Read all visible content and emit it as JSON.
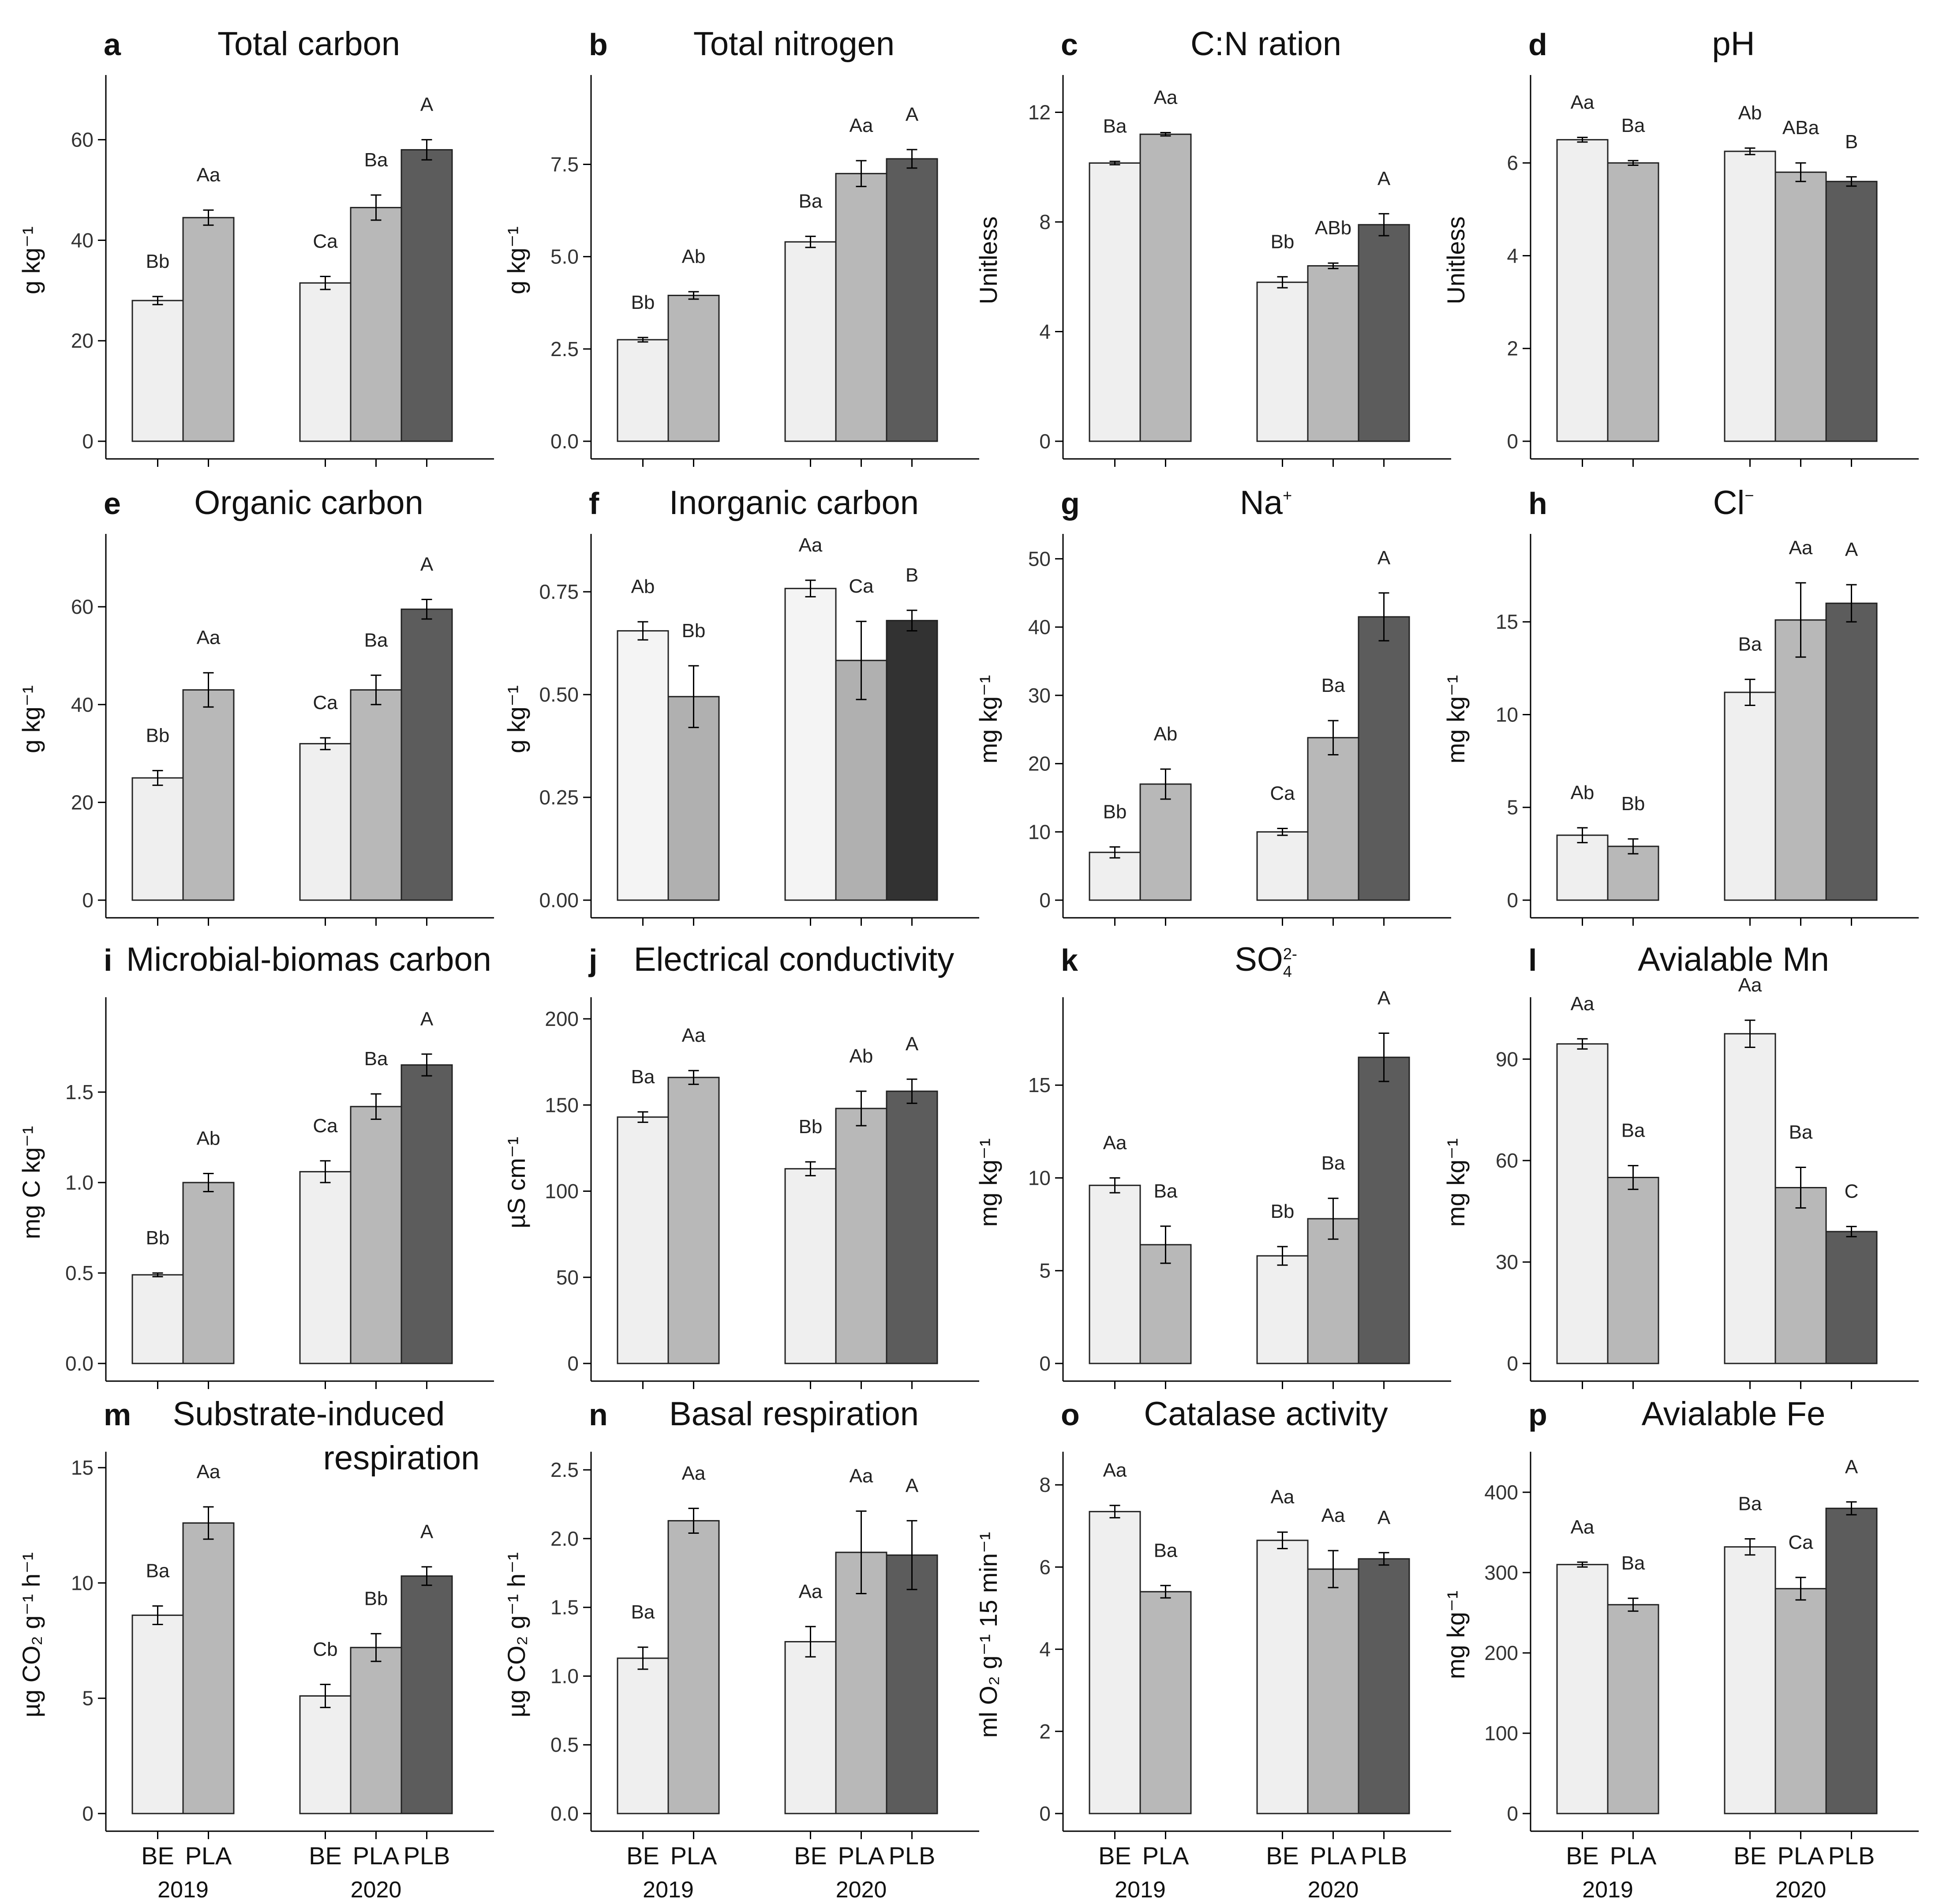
{
  "colors": {
    "BE": "#efefef",
    "PLA": "#b8b8b8",
    "PLB": "#5c5c5c"
  },
  "x_axis": {
    "categories_2019": [
      "BE",
      "PLA"
    ],
    "categories_2020": [
      "BE",
      "PLA",
      "PLB"
    ],
    "years": [
      "2019",
      "2020"
    ]
  },
  "chart_data": [
    {
      "type": "bar",
      "label": "a",
      "title": "Total carbon",
      "ylabel": "g kg⁻¹",
      "ylim": [
        0,
        72
      ],
      "yticks": [
        "0",
        "20",
        "40",
        "60"
      ],
      "ytick_values": [
        0,
        20,
        40,
        60
      ],
      "series": [
        {
          "name": "BE 2019",
          "value": 28,
          "error": 0.8,
          "letter": "Bb"
        },
        {
          "name": "PLA 2019",
          "value": 44.5,
          "error": 1.5,
          "letter": "Aa"
        },
        {
          "name": "BE 2020",
          "value": 31.5,
          "error": 1.3,
          "letter": "Ca"
        },
        {
          "name": "PLA 2020",
          "value": 46.5,
          "error": 2.5,
          "letter": "Ba"
        },
        {
          "name": "PLB 2020",
          "value": 58,
          "error": 2,
          "letter": "A"
        }
      ]
    },
    {
      "type": "bar",
      "label": "b",
      "title": "Total nitrogen",
      "ylabel": "g kg⁻¹",
      "ylim": [
        0,
        9.8
      ],
      "yticks": [
        "0.0",
        "2.5",
        "5.0",
        "7.5"
      ],
      "ytick_values": [
        0,
        2.5,
        5,
        7.5
      ],
      "series": [
        {
          "name": "BE 2019",
          "value": 2.75,
          "error": 0.06,
          "letter": "Bb"
        },
        {
          "name": "PLA 2019",
          "value": 3.95,
          "error": 0.1,
          "letter": "Ab"
        },
        {
          "name": "BE 2020",
          "value": 5.4,
          "error": 0.15,
          "letter": "Ba"
        },
        {
          "name": "PLA 2020",
          "value": 7.25,
          "error": 0.35,
          "letter": "Aa"
        },
        {
          "name": "PLB 2020",
          "value": 7.65,
          "error": 0.25,
          "letter": "A"
        }
      ]
    },
    {
      "type": "bar",
      "label": "c",
      "title": "C:N ration",
      "ylabel": "Unitless",
      "ylim": [
        0,
        13.2
      ],
      "yticks": [
        "0",
        "4",
        "8",
        "12"
      ],
      "ytick_values": [
        0,
        4,
        8,
        12
      ],
      "series": [
        {
          "name": "BE 2019",
          "value": 10.15,
          "error": 0.06,
          "letter": "Ba"
        },
        {
          "name": "PLA 2019",
          "value": 11.2,
          "error": 0.06,
          "letter": "Aa"
        },
        {
          "name": "BE 2020",
          "value": 5.8,
          "error": 0.2,
          "letter": "Bb"
        },
        {
          "name": "PLA 2020",
          "value": 6.4,
          "error": 0.1,
          "letter": "ABb"
        },
        {
          "name": "PLB 2020",
          "value": 7.9,
          "error": 0.4,
          "letter": "A"
        }
      ]
    },
    {
      "type": "bar",
      "label": "d",
      "title": "pH",
      "ylabel": "Unitless",
      "ylim": [
        0,
        7.8
      ],
      "yticks": [
        "0",
        "2",
        "4",
        "6"
      ],
      "ytick_values": [
        0,
        2,
        4,
        6
      ],
      "series": [
        {
          "name": "BE 2019",
          "value": 6.5,
          "error": 0.05,
          "letter": "Aa"
        },
        {
          "name": "PLA 2019",
          "value": 6.0,
          "error": 0.05,
          "letter": "Ba"
        },
        {
          "name": "BE 2020",
          "value": 6.25,
          "error": 0.07,
          "letter": "Ab"
        },
        {
          "name": "PLA 2020",
          "value": 5.8,
          "error": 0.2,
          "letter": "ABa"
        },
        {
          "name": "PLB 2020",
          "value": 5.6,
          "error": 0.1,
          "letter": "B"
        }
      ]
    },
    {
      "type": "bar",
      "label": "e",
      "title": "Organic carbon",
      "ylabel": "g kg⁻¹",
      "ylim": [
        0,
        74
      ],
      "yticks": [
        "0",
        "20",
        "40",
        "60"
      ],
      "ytick_values": [
        0,
        20,
        40,
        60
      ],
      "series": [
        {
          "name": "BE 2019",
          "value": 25,
          "error": 1.5,
          "letter": "Bb"
        },
        {
          "name": "PLA 2019",
          "value": 43,
          "error": 3.5,
          "letter": "Aa"
        },
        {
          "name": "BE 2020",
          "value": 32,
          "error": 1.2,
          "letter": "Ca"
        },
        {
          "name": "PLA 2020",
          "value": 43,
          "error": 3,
          "letter": "Ba"
        },
        {
          "name": "PLB 2020",
          "value": 59.5,
          "error": 2,
          "letter": "A"
        }
      ]
    },
    {
      "type": "bar",
      "label": "f",
      "title": "Inorganic carbon",
      "ylabel": "g kg⁻¹",
      "ylim": [
        0,
        0.88
      ],
      "yticks": [
        "0.00",
        "0.25",
        "0.50",
        "0.75"
      ],
      "ytick_values": [
        0,
        0.25,
        0.5,
        0.75
      ],
      "colors": [
        "#f4f4f4",
        "#b0b0b0",
        "#f4f4f4",
        "#b0b0b0",
        "#323232"
      ],
      "series": [
        {
          "name": "BE 2019",
          "value": 0.655,
          "error": 0.022,
          "letter": "Ab"
        },
        {
          "name": "PLA 2019",
          "value": 0.495,
          "error": 0.075,
          "letter": "Bb"
        },
        {
          "name": "BE 2020",
          "value": 0.758,
          "error": 0.02,
          "letter": "Aa"
        },
        {
          "name": "PLA 2020",
          "value": 0.583,
          "error": 0.095,
          "letter": "Ca"
        },
        {
          "name": "PLB 2020",
          "value": 0.68,
          "error": 0.025,
          "letter": "B"
        }
      ]
    },
    {
      "type": "bar",
      "label": "g",
      "title": "Na",
      "title_sup": "+",
      "ylabel": "mg kg⁻¹",
      "ylim": [
        0,
        53
      ],
      "yticks": [
        "0",
        "10",
        "20",
        "30",
        "40",
        "50"
      ],
      "ytick_values": [
        0,
        10,
        20,
        30,
        40,
        50
      ],
      "series": [
        {
          "name": "BE 2019",
          "value": 7,
          "error": 0.8,
          "letter": "Bb"
        },
        {
          "name": "PLA 2019",
          "value": 17,
          "error": 2.2,
          "letter": "Ab"
        },
        {
          "name": "BE 2020",
          "value": 10,
          "error": 0.5,
          "letter": "Ca"
        },
        {
          "name": "PLA 2020",
          "value": 23.8,
          "error": 2.5,
          "letter": "Ba"
        },
        {
          "name": "PLB 2020",
          "value": 41.5,
          "error": 3.5,
          "letter": "A"
        }
      ]
    },
    {
      "type": "bar",
      "label": "h",
      "title": "Cl",
      "title_sup": "−",
      "ylabel": "mg kg⁻¹",
      "ylim": [
        0,
        19.5
      ],
      "yticks": [
        "0",
        "5",
        "10",
        "15"
      ],
      "ytick_values": [
        0,
        5,
        10,
        15
      ],
      "series": [
        {
          "name": "BE 2019",
          "value": 3.5,
          "error": 0.4,
          "letter": "Ab"
        },
        {
          "name": "PLA 2019",
          "value": 2.9,
          "error": 0.4,
          "letter": "Bb"
        },
        {
          "name": "BE 2020",
          "value": 11.2,
          "error": 0.7,
          "letter": "Ba"
        },
        {
          "name": "PLA 2020",
          "value": 15.1,
          "error": 2,
          "letter": "Aa"
        },
        {
          "name": "PLB 2020",
          "value": 16,
          "error": 1,
          "letter": "A"
        }
      ]
    },
    {
      "type": "bar",
      "label": "i",
      "title": "Microbial-biomas carbon",
      "ylabel": "mg C kg⁻¹",
      "ylim": [
        0,
        2.0
      ],
      "yticks": [
        "0.0",
        "0.5",
        "1.0",
        "1.5"
      ],
      "ytick_values": [
        0,
        0.5,
        1,
        1.5
      ],
      "series": [
        {
          "name": "BE 2019",
          "value": 0.49,
          "error": 0.01,
          "letter": "Bb"
        },
        {
          "name": "PLA 2019",
          "value": 1.0,
          "error": 0.05,
          "letter": "Ab"
        },
        {
          "name": "BE 2020",
          "value": 1.06,
          "error": 0.06,
          "letter": "Ca"
        },
        {
          "name": "PLA 2020",
          "value": 1.42,
          "error": 0.07,
          "letter": "Ba"
        },
        {
          "name": "PLB 2020",
          "value": 1.65,
          "error": 0.06,
          "letter": "A"
        }
      ]
    },
    {
      "type": "bar",
      "label": "j",
      "title": "Electrical conductivity",
      "ylabel": "µS cm⁻¹",
      "ylim": [
        0,
        210
      ],
      "yticks": [
        "0",
        "50",
        "100",
        "150",
        "200"
      ],
      "ytick_values": [
        0,
        50,
        100,
        150,
        200
      ],
      "series": [
        {
          "name": "BE 2019",
          "value": 143,
          "error": 3,
          "letter": "Ba"
        },
        {
          "name": "PLA 2019",
          "value": 166,
          "error": 4,
          "letter": "Aa"
        },
        {
          "name": "BE 2020",
          "value": 113,
          "error": 4,
          "letter": "Bb"
        },
        {
          "name": "PLA 2020",
          "value": 148,
          "error": 10,
          "letter": "Ab"
        },
        {
          "name": "PLB 2020",
          "value": 158,
          "error": 7,
          "letter": "A"
        }
      ]
    },
    {
      "type": "bar",
      "label": "k",
      "title": "SO",
      "title_sub": "4",
      "title_sup": "2-",
      "ylabel": "mg kg⁻¹",
      "ylim": [
        0,
        19.5
      ],
      "yticks": [
        "0",
        "5",
        "10",
        "15"
      ],
      "ytick_values": [
        0,
        5,
        10,
        15
      ],
      "series": [
        {
          "name": "BE 2019",
          "value": 9.6,
          "error": 0.4,
          "letter": "Aa"
        },
        {
          "name": "PLA 2019",
          "value": 6.4,
          "error": 1,
          "letter": "Ba"
        },
        {
          "name": "BE 2020",
          "value": 5.8,
          "error": 0.5,
          "letter": "Bb"
        },
        {
          "name": "PLA 2020",
          "value": 7.8,
          "error": 1.1,
          "letter": "Ba"
        },
        {
          "name": "PLB 2020",
          "value": 16.5,
          "error": 1.3,
          "letter": "A"
        }
      ]
    },
    {
      "type": "bar",
      "label": "l",
      "title": "Avialable Mn",
      "ylabel": "mg kg⁻¹",
      "ylim": [
        0,
        107
      ],
      "yticks": [
        "0",
        "30",
        "60",
        "90"
      ],
      "ytick_values": [
        0,
        30,
        60,
        90
      ],
      "series": [
        {
          "name": "BE 2019",
          "value": 94.5,
          "error": 1.5,
          "letter": "Aa"
        },
        {
          "name": "PLA 2019",
          "value": 55,
          "error": 3.5,
          "letter": "Ba"
        },
        {
          "name": "BE 2020",
          "value": 97.5,
          "error": 4,
          "letter": "Aa"
        },
        {
          "name": "PLA 2020",
          "value": 52,
          "error": 6,
          "letter": "Ba"
        },
        {
          "name": "PLB 2020",
          "value": 39,
          "error": 1.5,
          "letter": "C"
        }
      ]
    },
    {
      "type": "bar",
      "label": "m",
      "title": "Substrate-induced",
      "title2": "respiration",
      "ylabel": "µg CO₂ g⁻¹ h⁻¹",
      "ylim": [
        0,
        15.5
      ],
      "yticks": [
        "0",
        "5",
        "10",
        "15"
      ],
      "ytick_values": [
        0,
        5,
        10,
        15
      ],
      "series": [
        {
          "name": "BE 2019",
          "value": 8.6,
          "error": 0.4,
          "letter": "Ba"
        },
        {
          "name": "PLA 2019",
          "value": 12.6,
          "error": 0.7,
          "letter": "Aa"
        },
        {
          "name": "BE 2020",
          "value": 5.1,
          "error": 0.5,
          "letter": "Cb"
        },
        {
          "name": "PLA 2020",
          "value": 7.2,
          "error": 0.6,
          "letter": "Bb"
        },
        {
          "name": "PLB 2020",
          "value": 10.3,
          "error": 0.4,
          "letter": "A"
        }
      ]
    },
    {
      "type": "bar",
      "label": "n",
      "title": "Basal respiration",
      "ylabel": "µg CO₂ g⁻¹ h⁻¹",
      "ylim": [
        0,
        2.6
      ],
      "yticks": [
        "0.0",
        "0.5",
        "1.0",
        "1.5",
        "2.0",
        "2.5"
      ],
      "ytick_values": [
        0,
        0.5,
        1,
        1.5,
        2,
        2.5
      ],
      "series": [
        {
          "name": "BE 2019",
          "value": 1.13,
          "error": 0.08,
          "letter": "Ba"
        },
        {
          "name": "PLA 2019",
          "value": 2.13,
          "error": 0.09,
          "letter": "Aa"
        },
        {
          "name": "BE 2020",
          "value": 1.25,
          "error": 0.11,
          "letter": "Aa"
        },
        {
          "name": "PLA 2020",
          "value": 1.9,
          "error": 0.3,
          "letter": "Aa"
        },
        {
          "name": "PLB 2020",
          "value": 1.88,
          "error": 0.25,
          "letter": "A"
        }
      ]
    },
    {
      "type": "bar",
      "label": "o",
      "title": "Catalase activity",
      "ylabel": "ml O₂ g⁻¹ 15 min⁻¹",
      "ylim": [
        0,
        8.7
      ],
      "yticks": [
        "0",
        "2",
        "4",
        "6",
        "8"
      ],
      "ytick_values": [
        0,
        2,
        4,
        6,
        8
      ],
      "series": [
        {
          "name": "BE 2019",
          "value": 7.35,
          "error": 0.15,
          "letter": "Aa"
        },
        {
          "name": "PLA 2019",
          "value": 5.4,
          "error": 0.15,
          "letter": "Ba"
        },
        {
          "name": "BE 2020",
          "value": 6.65,
          "error": 0.2,
          "letter": "Aa"
        },
        {
          "name": "PLA 2020",
          "value": 5.95,
          "error": 0.45,
          "letter": "Aa"
        },
        {
          "name": "PLB 2020",
          "value": 6.2,
          "error": 0.15,
          "letter": "A"
        }
      ]
    },
    {
      "type": "bar",
      "label": "p",
      "title": "Avialable Fe",
      "ylabel": "mg kg⁻¹",
      "ylim": [
        0,
        445
      ],
      "yticks": [
        "0",
        "100",
        "200",
        "300",
        "400"
      ],
      "ytick_values": [
        0,
        100,
        200,
        300,
        400
      ],
      "series": [
        {
          "name": "BE 2019",
          "value": 310,
          "error": 3,
          "letter": "Aa"
        },
        {
          "name": "PLA 2019",
          "value": 260,
          "error": 8,
          "letter": "Ba"
        },
        {
          "name": "BE 2020",
          "value": 332,
          "error": 10,
          "letter": "Ba"
        },
        {
          "name": "PLA 2020",
          "value": 280,
          "error": 14,
          "letter": "Ca"
        },
        {
          "name": "PLB 2020",
          "value": 380,
          "error": 8,
          "letter": "A"
        }
      ]
    }
  ]
}
